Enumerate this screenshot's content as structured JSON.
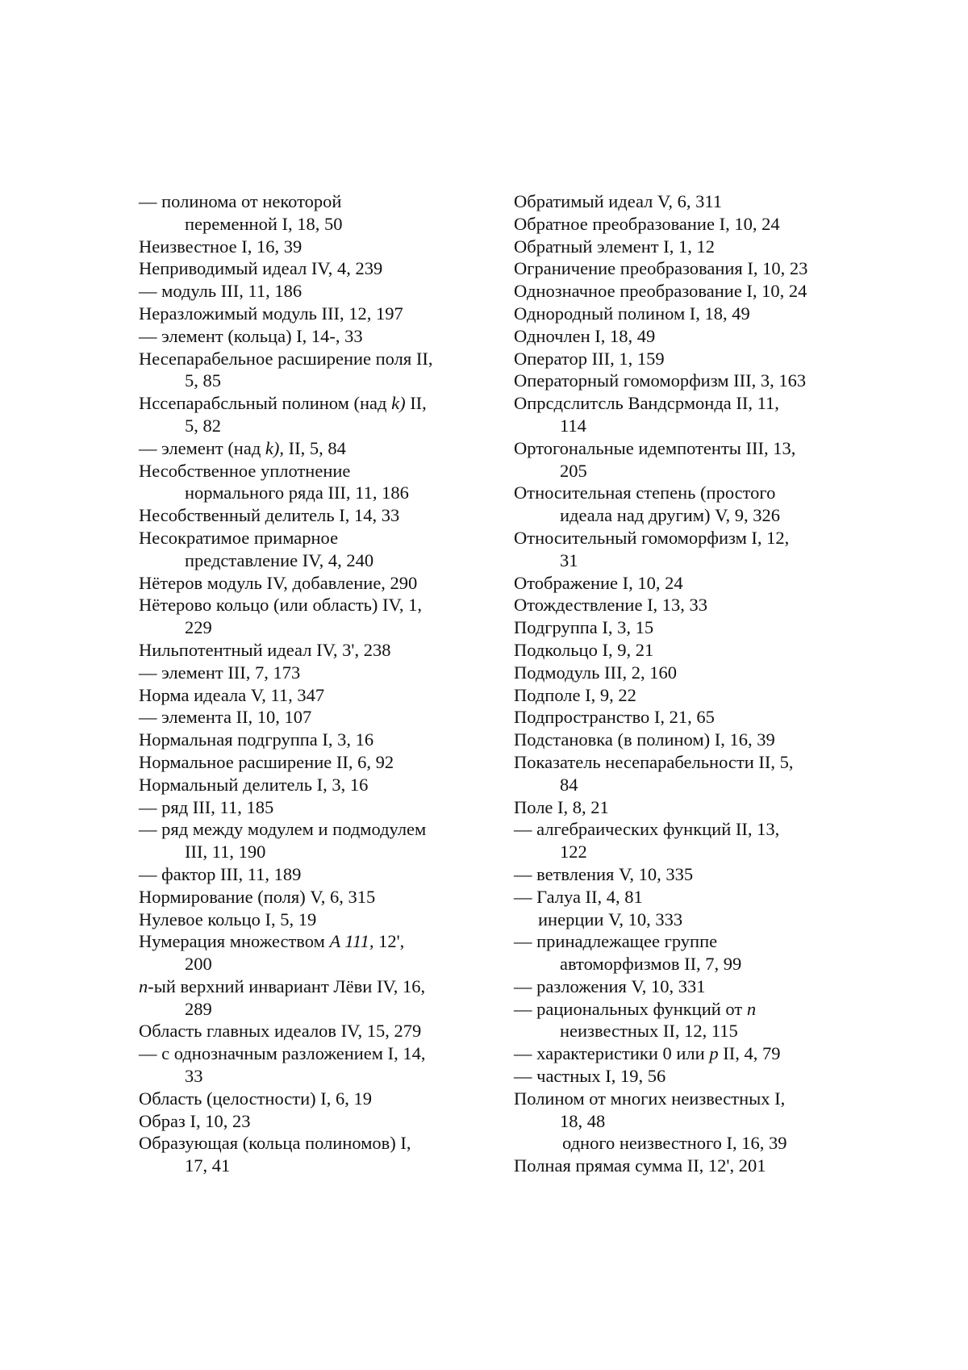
{
  "index": {
    "left_column": [
      {
        "kind": "entry",
        "segs": [
          "— полинома от некоторой"
        ]
      },
      {
        "kind": "cont",
        "segs": [
          "переменной I, 18, 50"
        ]
      },
      {
        "kind": "entry",
        "segs": [
          "Неизвестное I, 16, 39"
        ]
      },
      {
        "kind": "entry",
        "segs": [
          "Неприводимый идеал IV, 4, 239"
        ]
      },
      {
        "kind": "entry",
        "segs": [
          "— модуль III, 11, 186"
        ]
      },
      {
        "kind": "entry",
        "segs": [
          "Неразложимый модуль III, 12, 197"
        ]
      },
      {
        "kind": "entry",
        "segs": [
          "— элемент (кольца) I, 14-, 33"
        ]
      },
      {
        "kind": "entry",
        "segs": [
          "Несепарабельное расширение поля II,"
        ]
      },
      {
        "kind": "cont",
        "segs": [
          "5, 85"
        ]
      },
      {
        "kind": "entry",
        "segs": [
          "Нссепарабсльный полином (над ",
          "k)",
          " II,"
        ],
        "italic": [
          1
        ]
      },
      {
        "kind": "cont",
        "segs": [
          "5, 82"
        ]
      },
      {
        "kind": "entry",
        "segs": [
          "— элемент (над ",
          "k),",
          " II, 5, 84"
        ],
        "italic": [
          1
        ]
      },
      {
        "kind": "entry",
        "segs": [
          "Несобственное уплотнение"
        ]
      },
      {
        "kind": "cont",
        "segs": [
          "нормального ряда III, 11, 186"
        ]
      },
      {
        "kind": "entry",
        "segs": [
          "Несобственный делитель I, 14, 33"
        ]
      },
      {
        "kind": "entry",
        "segs": [
          "Несократимое примарное"
        ]
      },
      {
        "kind": "cont",
        "segs": [
          "представление IV, 4, 240"
        ]
      },
      {
        "kind": "entry",
        "segs": [
          "Нётеров модуль IV, добавление, 290"
        ]
      },
      {
        "kind": "entry",
        "segs": [
          "Нётерово кольцо (или область) IV, 1,"
        ]
      },
      {
        "kind": "cont",
        "segs": [
          "229"
        ]
      },
      {
        "kind": "entry",
        "segs": [
          "Нильпотентный идеал IV, 3', 238"
        ]
      },
      {
        "kind": "entry",
        "segs": [
          "— элемент III, 7, 173"
        ]
      },
      {
        "kind": "entry",
        "segs": [
          "Норма идеала V, 11, 347"
        ]
      },
      {
        "kind": "entry",
        "segs": [
          "— элемента II, 10, 107"
        ]
      },
      {
        "kind": "entry",
        "segs": [
          "Нормальная подгруппа I, 3, 16"
        ]
      },
      {
        "kind": "entry",
        "segs": [
          "Нормальное расширение II, 6, 92"
        ]
      },
      {
        "kind": "entry",
        "segs": [
          "Нормальный делитель I, 3, 16"
        ]
      },
      {
        "kind": "entry",
        "segs": [
          "— ряд III, 11, 185"
        ]
      },
      {
        "kind": "entry",
        "segs": [
          "— ряд между модулем и подмодулем"
        ]
      },
      {
        "kind": "cont",
        "segs": [
          "III, 11, 190"
        ]
      },
      {
        "kind": "entry",
        "segs": [
          "— фактор III, 11, 189"
        ]
      },
      {
        "kind": "entry",
        "segs": [
          "Нормирование (поля) V, 6, 315"
        ]
      },
      {
        "kind": "entry",
        "segs": [
          "Нулевое кольцо I, 5, 19"
        ]
      },
      {
        "kind": "entry",
        "segs": [
          "Нумерация множеством ",
          "A 111,",
          " 12',"
        ],
        "italic": [
          1
        ]
      },
      {
        "kind": "cont",
        "segs": [
          "200"
        ]
      },
      {
        "kind": "entry",
        "segs": [
          "n",
          "-ый верхний инвариант Лёви IV, 16,"
        ],
        "italic": [
          0
        ]
      },
      {
        "kind": "cont",
        "segs": [
          "289"
        ]
      },
      {
        "kind": "entry",
        "segs": [
          "Область главных идеалов IV, 15, 279"
        ]
      },
      {
        "kind": "entry",
        "segs": [
          "— с однозначным разложением I, 14,"
        ]
      },
      {
        "kind": "cont",
        "segs": [
          "33"
        ]
      },
      {
        "kind": "entry",
        "segs": [
          "Область (целостности) I, 6, 19"
        ]
      },
      {
        "kind": "entry",
        "segs": [
          "Образ I, 10, 23"
        ]
      },
      {
        "kind": "entry",
        "segs": [
          "Образующая (кольца полиномов) I,"
        ]
      },
      {
        "kind": "cont",
        "segs": [
          "17, 41"
        ]
      }
    ],
    "right_column": [
      {
        "kind": "entry",
        "segs": [
          "Обратимый идеал V, 6, 311"
        ]
      },
      {
        "kind": "entry",
        "segs": [
          "Обратное преобразование I, 10, 24"
        ]
      },
      {
        "kind": "entry",
        "segs": [
          "Обратный элемент I, 1, 12"
        ]
      },
      {
        "kind": "entry",
        "segs": [
          "Ограничение преобразования I, 10, 23"
        ]
      },
      {
        "kind": "entry",
        "segs": [
          "Однозначное преобразование I, 10, 24"
        ]
      },
      {
        "kind": "entry",
        "segs": [
          "Однородный полином I, 18, 49"
        ]
      },
      {
        "kind": "entry",
        "segs": [
          "Одночлен I, 18, 49"
        ]
      },
      {
        "kind": "entry",
        "segs": [
          "Оператор III, 1, 159"
        ]
      },
      {
        "kind": "entry",
        "segs": [
          "Операторный гомоморфизм III, 3, 163"
        ]
      },
      {
        "kind": "entry",
        "segs": [
          "Опрсдслитсль Вандсрмонда II, 11,"
        ]
      },
      {
        "kind": "cont",
        "segs": [
          "114"
        ]
      },
      {
        "kind": "entry",
        "segs": [
          "Ортогональные идемпотенты III, 13,"
        ]
      },
      {
        "kind": "cont",
        "segs": [
          "205"
        ]
      },
      {
        "kind": "entry",
        "segs": [
          "Относительная степень (простого"
        ]
      },
      {
        "kind": "cont",
        "segs": [
          "идеала над другим) V, 9, 326"
        ]
      },
      {
        "kind": "entry",
        "segs": [
          "Относительный гомоморфизм I, 12,"
        ]
      },
      {
        "kind": "cont",
        "segs": [
          "31"
        ]
      },
      {
        "kind": "entry",
        "segs": [
          "Отображение I, 10, 24"
        ]
      },
      {
        "kind": "entry",
        "segs": [
          "Отождествление I, 13, 33"
        ]
      },
      {
        "kind": "entry",
        "segs": [
          "Подгруппа I, 3, 15"
        ]
      },
      {
        "kind": "entry",
        "segs": [
          "Подкольцо I, 9, 21"
        ]
      },
      {
        "kind": "entry",
        "segs": [
          "Подмодуль III, 2, 160"
        ]
      },
      {
        "kind": "entry",
        "segs": [
          "Подполе I, 9, 22"
        ]
      },
      {
        "kind": "entry",
        "segs": [
          "Подпространство I, 21, 65"
        ]
      },
      {
        "kind": "entry",
        "segs": [
          "Подстановка (в полином) I, 16, 39"
        ]
      },
      {
        "kind": "entry",
        "segs": [
          "Показатель несепарабельности II, 5,"
        ]
      },
      {
        "kind": "cont",
        "segs": [
          "84"
        ]
      },
      {
        "kind": "entry",
        "segs": [
          "Поле I, 8, 21"
        ]
      },
      {
        "kind": "entry",
        "segs": [
          "— алгебраических функций II, 13,"
        ]
      },
      {
        "kind": "cont",
        "segs": [
          "122"
        ]
      },
      {
        "kind": "entry",
        "segs": [
          "— ветвления V, 10, 335"
        ]
      },
      {
        "kind": "entry",
        "segs": [
          "— Галуа II, 4, 81"
        ]
      },
      {
        "kind": "sub",
        "segs": [
          "инерции V, 10, 333"
        ]
      },
      {
        "kind": "entry",
        "segs": [
          "— принадлежащее группе"
        ]
      },
      {
        "kind": "cont",
        "segs": [
          "автоморфизмов II, 7, 99"
        ]
      },
      {
        "kind": "entry",
        "segs": [
          "— разложения V, 10, 331"
        ]
      },
      {
        "kind": "entry",
        "segs": [
          "— рациональных функций от ",
          "n"
        ],
        "italic": [
          1
        ]
      },
      {
        "kind": "cont",
        "segs": [
          "неизвестных II, 12, 115"
        ]
      },
      {
        "kind": "entry",
        "segs": [
          "— характеристики 0 или ",
          "p",
          " II, 4, 79"
        ],
        "italic": [
          1
        ]
      },
      {
        "kind": "entry",
        "segs": [
          "— частных I, 19, 56"
        ]
      },
      {
        "kind": "entry",
        "segs": [
          "Полином от многих неизвестных I,"
        ]
      },
      {
        "kind": "cont",
        "segs": [
          "18, 48"
        ]
      },
      {
        "kind": "cont2",
        "segs": [
          "одного неизвестного I, 16, 39"
        ]
      },
      {
        "kind": "entry",
        "segs": [
          "Полная прямая сумма II, 12', 201"
        ]
      }
    ]
  }
}
